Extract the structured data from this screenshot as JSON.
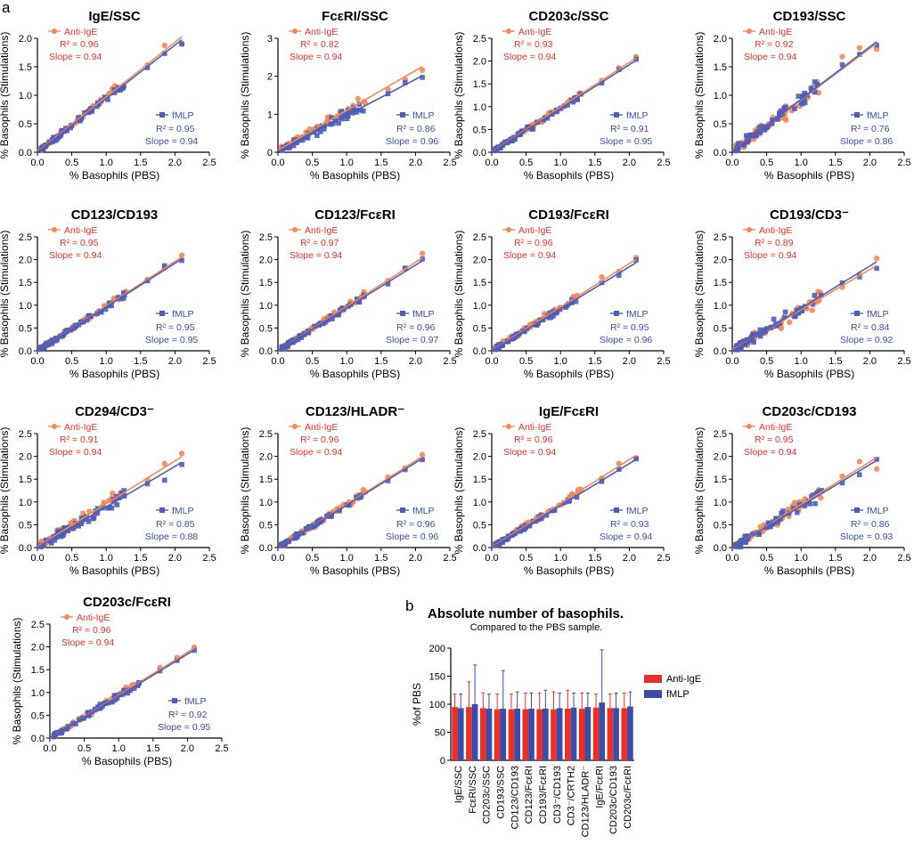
{
  "labels": {
    "panel_a": "a",
    "panel_b": "b"
  },
  "colors": {
    "anti_ige": "#f28a5c",
    "fmlp": "#4d5db8",
    "bar_red": "#e8302a",
    "bar_blue": "#3b4ba6"
  },
  "common": {
    "xlabel": "% Basophils (PBS)",
    "ylabel": "% Basophils (Stimulations)",
    "x_ticks": [
      "0.0",
      "0.5",
      "1.0",
      "1.5",
      "2.0",
      "2.5"
    ],
    "y_ticks_a": [
      "0.0",
      "0.5",
      "1.0",
      "1.5",
      "2.0"
    ],
    "y_ticks_b": [
      "0",
      "1",
      "2",
      "3"
    ],
    "y_ticks_c": [
      "0.0",
      "0.5",
      "1.0",
      "1.5",
      "2.0",
      "2.5"
    ],
    "legend_anti_ige": "Anti-IgE",
    "legend_fmlp": "fMLP"
  },
  "chart_data": [
    {
      "type": "scatter",
      "title": "IgE/SSC",
      "xlim": [
        0,
        2.5
      ],
      "ylim": [
        0,
        2.0
      ],
      "yticks": "y_ticks_a",
      "anti_ige": {
        "r2": "R² = 0.96",
        "slope": "Slope = 0.94",
        "m": 0.96,
        "b": 0.01
      },
      "fmlp": {
        "r2": "R² = 0.95",
        "slope": "Slope = 0.94",
        "m": 0.94,
        "b": 0.0
      }
    },
    {
      "type": "scatter",
      "title": "FcεRI/SSC",
      "xlim": [
        0,
        2.5
      ],
      "ylim": [
        0,
        3
      ],
      "yticks": "y_ticks_b",
      "anti_ige": {
        "r2": "R² = 0.82",
        "slope": "Slope = 0.94",
        "m": 1.05,
        "b": 0.05
      },
      "fmlp": {
        "r2": "R² = 0.86",
        "slope": "Slope = 0.96",
        "m": 0.95,
        "b": 0.02
      }
    },
    {
      "type": "scatter",
      "title": "CD203c/SSC",
      "xlim": [
        0,
        2.5
      ],
      "ylim": [
        0,
        2.5
      ],
      "yticks": "y_ticks_c",
      "anti_ige": {
        "r2": "R² = 0.93",
        "slope": "Slope = 0.94",
        "m": 0.98,
        "b": 0.01
      },
      "fmlp": {
        "r2": "R² = 0.91",
        "slope": "Slope = 0.95",
        "m": 0.96,
        "b": 0.0
      }
    },
    {
      "type": "scatter",
      "title": "CD193/SSC",
      "xlim": [
        0,
        2.5
      ],
      "ylim": [
        0,
        2.0
      ],
      "yticks": "y_ticks_a",
      "anti_ige": {
        "r2": "R² = 0.92",
        "slope": "Slope = 0.94",
        "m": 0.9,
        "b": 0.02
      },
      "fmlp": {
        "r2": "R² = 0.76",
        "slope": "Slope = 0.86",
        "m": 0.92,
        "b": 0.01
      }
    },
    {
      "type": "scatter",
      "title": "CD123/CD193",
      "xlim": [
        0,
        2.5
      ],
      "ylim": [
        0,
        2.5
      ],
      "yticks": "y_ticks_c",
      "anti_ige": {
        "r2": "R² = 0.95",
        "slope": "Slope = 0.94",
        "m": 0.98,
        "b": 0.0
      },
      "fmlp": {
        "r2": "R² = 0.95",
        "slope": "Slope = 0.95",
        "m": 0.96,
        "b": 0.0
      }
    },
    {
      "type": "scatter",
      "title": "CD123/FcεRI",
      "xlim": [
        0,
        2.5
      ],
      "ylim": [
        0,
        2.5
      ],
      "yticks": "y_ticks_c",
      "anti_ige": {
        "r2": "R² = 0.97",
        "slope": "Slope = 0.94",
        "m": 0.97,
        "b": 0.0
      },
      "fmlp": {
        "r2": "R² = 0.96",
        "slope": "Slope = 0.97",
        "m": 0.94,
        "b": 0.0
      }
    },
    {
      "type": "scatter",
      "title": "CD193/FcεRI",
      "xlim": [
        0,
        2.5
      ],
      "ylim": [
        0,
        2.5
      ],
      "yticks": "y_ticks_c",
      "anti_ige": {
        "r2": "R² = 0.96",
        "slope": "Slope = 0.94",
        "m": 0.95,
        "b": 0.01
      },
      "fmlp": {
        "r2": "R² = 0.95",
        "slope": "Slope = 0.96",
        "m": 0.92,
        "b": 0.0
      }
    },
    {
      "type": "scatter",
      "title": "CD193/CD3⁻",
      "xlim": [
        0,
        2.5
      ],
      "ylim": [
        0,
        2.5
      ],
      "yticks": "y_ticks_c",
      "anti_ige": {
        "r2": "R² = 0.89",
        "slope": "Slope = 0.94",
        "m": 0.88,
        "b": 0.02
      },
      "fmlp": {
        "r2": "R² = 0.84",
        "slope": "Slope = 0.92",
        "m": 0.93,
        "b": 0.0
      }
    },
    {
      "type": "scatter",
      "title": "CD294/CD3⁻",
      "xlim": [
        0,
        2.5
      ],
      "ylim": [
        0,
        2.5
      ],
      "yticks": "y_ticks_c",
      "anti_ige": {
        "r2": "R² = 0.91",
        "slope": "Slope = 0.94",
        "m": 0.94,
        "b": 0.02
      },
      "fmlp": {
        "r2": "R² = 0.85",
        "slope": "Slope = 0.88",
        "m": 0.89,
        "b": 0.0
      }
    },
    {
      "type": "scatter",
      "title": "CD123/HLADR⁻",
      "xlim": [
        0,
        2.5
      ],
      "ylim": [
        0,
        2.5
      ],
      "yticks": "y_ticks_c",
      "anti_ige": {
        "r2": "R² = 0.96",
        "slope": "Slope = 0.94",
        "m": 0.95,
        "b": 0.0
      },
      "fmlp": {
        "r2": "R² = 0.96",
        "slope": "Slope = 0.96",
        "m": 0.93,
        "b": 0.0
      }
    },
    {
      "type": "scatter",
      "title": "IgE/FcεRI",
      "xlim": [
        0,
        2.5
      ],
      "ylim": [
        0,
        2.5
      ],
      "yticks": "y_ticks_c",
      "anti_ige": {
        "r2": "R² = 0.96",
        "slope": "Slope = 0.94",
        "m": 0.96,
        "b": 0.01
      },
      "fmlp": {
        "r2": "R² = 0.93",
        "slope": "Slope = 0.94",
        "m": 0.92,
        "b": 0.0
      }
    },
    {
      "type": "scatter",
      "title": "CD203c/CD193",
      "xlim": [
        0,
        2.5
      ],
      "ylim": [
        0,
        2.5
      ],
      "yticks": "y_ticks_c",
      "anti_ige": {
        "r2": "R² = 0.95",
        "slope": "Slope = 0.94",
        "m": 0.94,
        "b": 0.0
      },
      "fmlp": {
        "r2": "R² = 0.86",
        "slope": "Slope = 0.93",
        "m": 0.91,
        "b": 0.0
      }
    },
    {
      "type": "scatter",
      "title": "CD203c/FcεRI",
      "xlim": [
        0,
        2.5
      ],
      "ylim": [
        0,
        2.5
      ],
      "yticks": "y_ticks_c",
      "anti_ige": {
        "r2": "R² = 0.96",
        "slope": "Slope = 0.94",
        "m": 0.94,
        "b": 0.0
      },
      "fmlp": {
        "r2": "R² = 0.92",
        "slope": "Slope = 0.95",
        "m": 0.92,
        "b": 0.0
      }
    },
    {
      "type": "bar",
      "title": "Absolute number of basophils.",
      "subtitle": "Compared to the PBS sample.",
      "ylabel": "%of PBS",
      "ylim": [
        0,
        200
      ],
      "yticks": [
        "0",
        "50",
        "100",
        "150",
        "200"
      ],
      "categories": [
        "IgE/SSC",
        "FcεRI/SSC",
        "CD203c/SSC",
        "CD193/SSC",
        "CD123/CD193",
        "CD123/FcεRI",
        "CD193/FcεRI",
        "CD3⁻/CD193",
        "CD3⁻/CRTH2",
        "CD123/HLADR⁻",
        "IgE/FcεRI",
        "CD203c/CD193",
        "CD203c/FcεRI"
      ],
      "series": [
        {
          "name": "Anti-IgE",
          "values": [
            95,
            95,
            93,
            91,
            91,
            91,
            91,
            91,
            92,
            92,
            94,
            93,
            93
          ],
          "err_up": [
            118,
            140,
            120,
            118,
            118,
            120,
            120,
            122,
            125,
            120,
            118,
            118,
            120
          ]
        },
        {
          "name": "fMLP",
          "values": [
            93,
            100,
            92,
            92,
            92,
            92,
            92,
            93,
            94,
            95,
            103,
            93,
            96
          ],
          "err_up": [
            118,
            170,
            118,
            160,
            122,
            120,
            125,
            120,
            120,
            120,
            197,
            120,
            122
          ]
        }
      ]
    }
  ]
}
